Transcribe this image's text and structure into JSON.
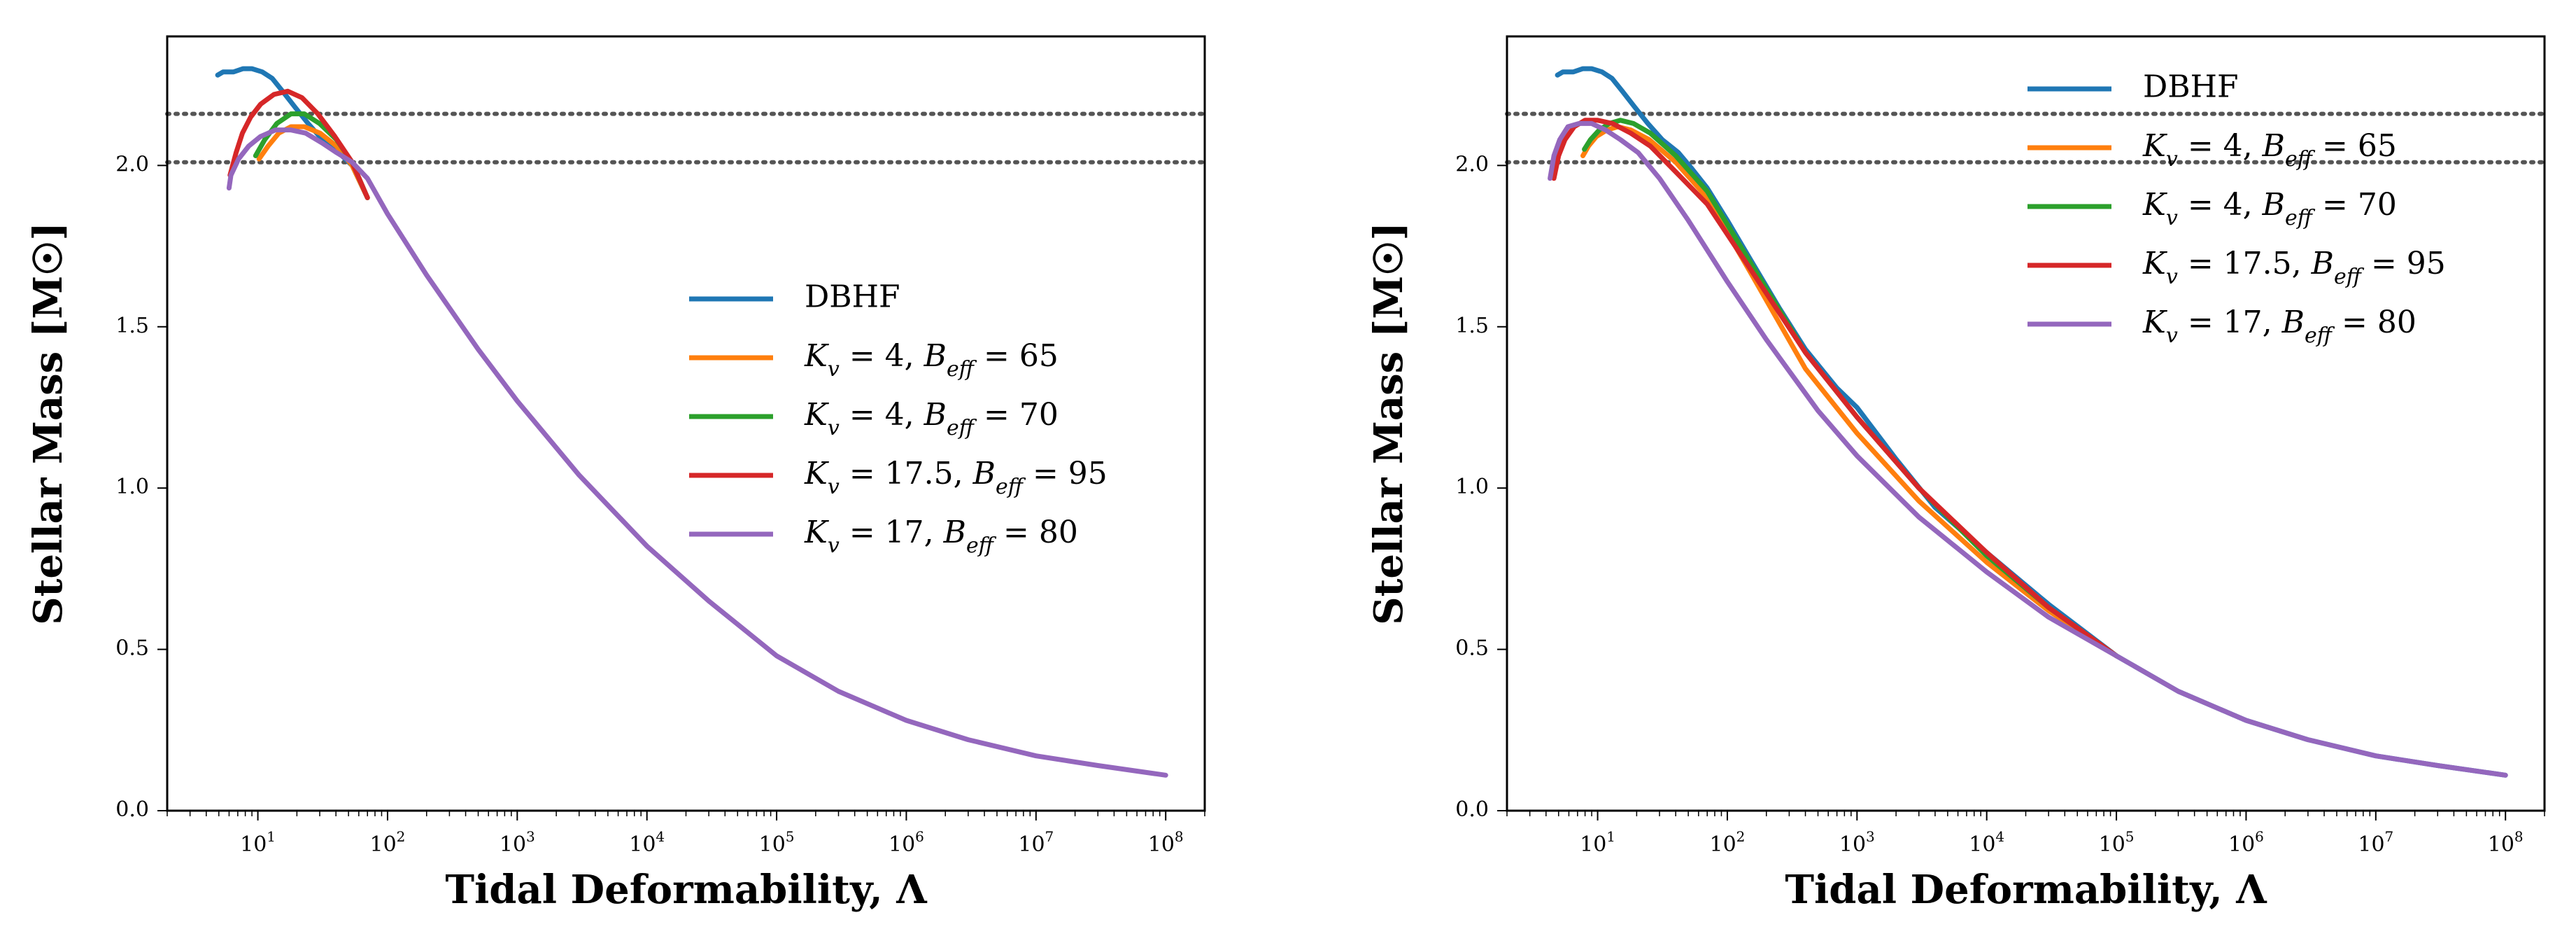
{
  "chart_data": [
    {
      "type": "line",
      "title": "",
      "xlabel": "Tidal Deformability, Λ",
      "ylabel": "Stellar Mass [M☉]",
      "xscale": "log",
      "xlim": [
        2,
        200000000
      ],
      "ylim": [
        0,
        2.4
      ],
      "x_ticks": [
        {
          "base": "10",
          "exp": "1",
          "value": 10
        },
        {
          "base": "10",
          "exp": "2",
          "value": 100
        },
        {
          "base": "10",
          "exp": "3",
          "value": 1000
        },
        {
          "base": "10",
          "exp": "4",
          "value": 10000
        },
        {
          "base": "10",
          "exp": "5",
          "value": 100000
        },
        {
          "base": "10",
          "exp": "6",
          "value": 1000000
        },
        {
          "base": "10",
          "exp": "7",
          "value": 10000000
        },
        {
          "base": "10",
          "exp": "8",
          "value": 100000000
        }
      ],
      "y_ticks": [
        {
          "label": "0.0",
          "value": 0
        },
        {
          "label": "0.5",
          "value": 0.5
        },
        {
          "label": "1.0",
          "value": 1.0
        },
        {
          "label": "1.5",
          "value": 1.5
        },
        {
          "label": "2.0",
          "value": 2.0
        }
      ],
      "reference_lines": [
        2.01,
        2.16
      ],
      "legend_position": "center-right",
      "series": [
        {
          "name": "DBHF",
          "color": "#1f77b4",
          "x": [
            4.9,
            5.4,
            6.5,
            7.7,
            9.0,
            10.8,
            12.9,
            15.5,
            19.4,
            24.4,
            31.5,
            41.9,
            53.3,
            70
          ],
          "y": [
            2.28,
            2.29,
            2.29,
            2.3,
            2.3,
            2.29,
            2.27,
            2.23,
            2.18,
            2.13,
            2.08,
            2.04,
            2.0,
            1.9
          ]
        },
        {
          "name": "K_v = 4, B_eff = 65",
          "color": "#ff7f0e",
          "x": [
            10.2,
            12.0,
            14.5,
            18.0,
            22.8,
            30.2,
            40.4,
            53.3,
            70
          ],
          "y": [
            2.02,
            2.06,
            2.1,
            2.12,
            2.12,
            2.1,
            2.06,
            2.0,
            1.9
          ]
        },
        {
          "name": "K_v = 4, B_eff = 70",
          "color": "#2ca02c",
          "x": [
            9.6,
            11.3,
            14.0,
            18.0,
            22.8,
            29.9,
            40.4,
            53.3,
            70
          ],
          "y": [
            2.03,
            2.08,
            2.13,
            2.16,
            2.16,
            2.13,
            2.08,
            2.01,
            1.9
          ]
        },
        {
          "name": "K_v = 17.5, B_eff = 95",
          "color": "#d62728",
          "x": [
            6.1,
            6.8,
            7.6,
            8.8,
            10.5,
            13.3,
            17.0,
            21.9,
            29.0,
            39.2,
            53.3,
            70
          ],
          "y": [
            1.97,
            2.04,
            2.1,
            2.15,
            2.19,
            2.22,
            2.23,
            2.21,
            2.16,
            2.09,
            2.01,
            1.9
          ]
        },
        {
          "name": "K_v = 17, B_eff = 80",
          "color": "#9467bd",
          "x": [
            6.0,
            6.2,
            7.1,
            8.5,
            10.5,
            13.7,
            17.9,
            23.4,
            31.2,
            40.4,
            53.3,
            70,
            100,
            200,
            500,
            1000,
            3000,
            10000,
            30000,
            100000,
            300000,
            1000000,
            3000000,
            10000000,
            30000000,
            100000000
          ],
          "y": [
            1.93,
            1.97,
            2.02,
            2.06,
            2.09,
            2.11,
            2.11,
            2.1,
            2.07,
            2.04,
            2.01,
            1.96,
            1.85,
            1.66,
            1.43,
            1.27,
            1.04,
            0.82,
            0.65,
            0.48,
            0.37,
            0.28,
            0.22,
            0.17,
            0.14,
            0.11
          ]
        }
      ]
    },
    {
      "type": "line",
      "title": "",
      "xlabel": "Tidal Deformability, Λ",
      "ylabel": "Stellar Mass [M☉]",
      "xscale": "log",
      "xlim": [
        2,
        200000000
      ],
      "ylim": [
        0,
        2.4
      ],
      "x_ticks": [
        {
          "base": "10",
          "exp": "1",
          "value": 10
        },
        {
          "base": "10",
          "exp": "2",
          "value": 100
        },
        {
          "base": "10",
          "exp": "3",
          "value": 1000
        },
        {
          "base": "10",
          "exp": "4",
          "value": 10000
        },
        {
          "base": "10",
          "exp": "5",
          "value": 100000
        },
        {
          "base": "10",
          "exp": "6",
          "value": 1000000
        },
        {
          "base": "10",
          "exp": "7",
          "value": 10000000
        },
        {
          "base": "10",
          "exp": "8",
          "value": 100000000
        }
      ],
      "y_ticks": [
        {
          "label": "0.0",
          "value": 0
        },
        {
          "label": "0.5",
          "value": 0.5
        },
        {
          "label": "1.0",
          "value": 1.0
        },
        {
          "label": "1.5",
          "value": 1.5
        },
        {
          "label": "2.0",
          "value": 2.0
        }
      ],
      "reference_lines": [
        2.01,
        2.16
      ],
      "legend_position": "upper-right",
      "series": [
        {
          "name": "DBHF",
          "color": "#1f77b4",
          "x": [
            4.9,
            5.4,
            6.5,
            7.7,
            9.0,
            10.8,
            12.9,
            15.5,
            19.4,
            24.4,
            31.5,
            41.9,
            53.3,
            70,
            100,
            150,
            250,
            400,
            700,
            1000,
            2000,
            4000,
            10000,
            30000,
            100000,
            300000,
            1000000,
            3000000,
            10000000,
            30000000,
            100000000
          ],
          "y": [
            2.28,
            2.29,
            2.29,
            2.3,
            2.3,
            2.29,
            2.27,
            2.23,
            2.18,
            2.13,
            2.08,
            2.04,
            1.99,
            1.93,
            1.83,
            1.71,
            1.56,
            1.43,
            1.31,
            1.25,
            1.09,
            0.94,
            0.8,
            0.64,
            0.48,
            0.37,
            0.28,
            0.22,
            0.17,
            0.14,
            0.11
          ]
        },
        {
          "name": "K_v = 4, B_eff = 65",
          "color": "#ff7f0e",
          "x": [
            7.7,
            8.5,
            9.8,
            11.8,
            14.3,
            18.0,
            25.0,
            40,
            70,
            150,
            400,
            1000,
            3000,
            10000,
            30000,
            100000
          ],
          "y": [
            2.03,
            2.06,
            2.09,
            2.11,
            2.12,
            2.11,
            2.08,
            2.01,
            1.9,
            1.67,
            1.37,
            1.17,
            0.96,
            0.77,
            0.62,
            0.48
          ]
        },
        {
          "name": "K_v = 4, B_eff = 70",
          "color": "#2ca02c",
          "x": [
            7.9,
            8.8,
            10.3,
            12.3,
            15.0,
            18.9,
            25.5,
            40,
            70,
            150,
            400,
            1000,
            3000,
            10000,
            30000,
            100000
          ],
          "y": [
            2.05,
            2.08,
            2.11,
            2.13,
            2.14,
            2.13,
            2.1,
            2.03,
            1.92,
            1.7,
            1.42,
            1.22,
            1.0,
            0.79,
            0.63,
            0.48
          ]
        },
        {
          "name": "K_v = 17.5, B_eff = 95",
          "color": "#d62728",
          "x": [
            4.6,
            5.0,
            5.6,
            6.6,
            8.0,
            10.0,
            13.0,
            18.0,
            25.5,
            40,
            70,
            150,
            400,
            1000,
            3000,
            10000,
            30000,
            100000
          ],
          "y": [
            1.96,
            2.03,
            2.08,
            2.12,
            2.14,
            2.14,
            2.13,
            2.1,
            2.06,
            1.98,
            1.88,
            1.68,
            1.42,
            1.22,
            1.0,
            0.8,
            0.63,
            0.48
          ]
        },
        {
          "name": "K_v = 17, B_eff = 80",
          "color": "#9467bd",
          "x": [
            4.3,
            4.6,
            5.1,
            5.9,
            7.2,
            9.0,
            11.5,
            15.0,
            20.5,
            30,
            50,
            100,
            200,
            500,
            1000,
            3000,
            10000,
            30000,
            100000,
            300000,
            1000000,
            3000000,
            10000000,
            30000000,
            100000000
          ],
          "y": [
            1.96,
            2.03,
            2.08,
            2.12,
            2.13,
            2.13,
            2.11,
            2.08,
            2.04,
            1.96,
            1.83,
            1.64,
            1.46,
            1.24,
            1.1,
            0.91,
            0.74,
            0.6,
            0.48,
            0.37,
            0.28,
            0.22,
            0.17,
            0.14,
            0.11
          ]
        }
      ]
    }
  ]
}
